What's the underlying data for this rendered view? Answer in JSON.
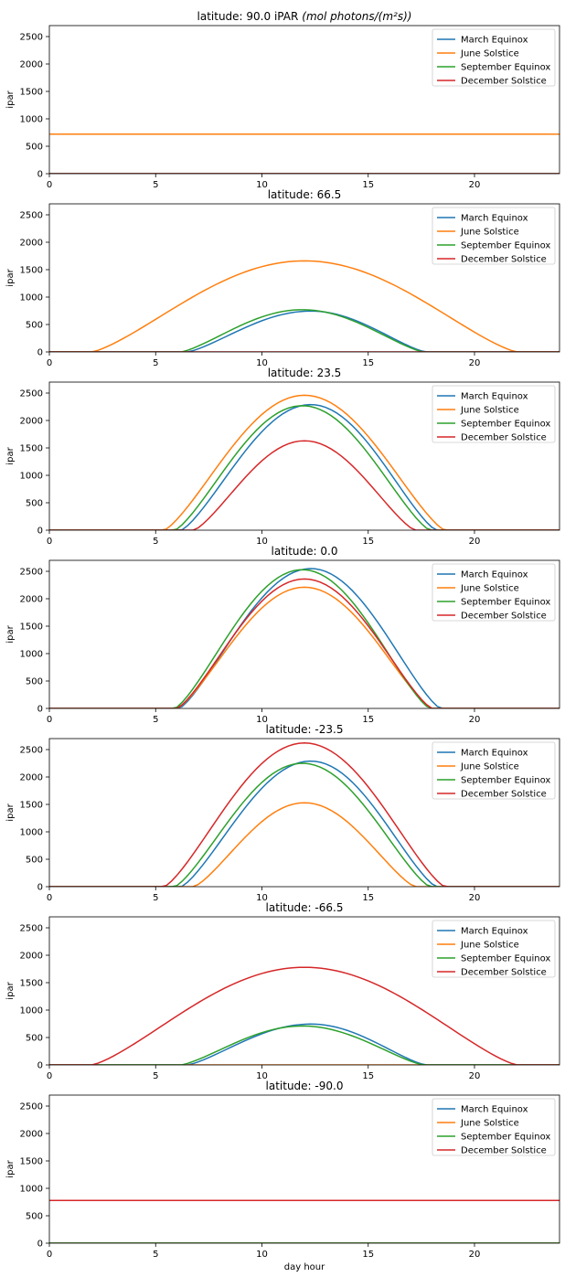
{
  "chart_data": {
    "type": "line",
    "xlabel": "day hour",
    "ylabel": "ipar",
    "xlim": [
      0,
      24
    ],
    "ylim": [
      0,
      2700
    ],
    "xticks": [
      0,
      5,
      10,
      15,
      20
    ],
    "yticks": [
      0,
      500,
      1000,
      1500,
      2000,
      2500
    ],
    "legend_placement": "top-right",
    "grid": false,
    "series_names": [
      "March Equinox",
      "June Solstice",
      "September Equinox",
      "December Solstice"
    ],
    "series_colors": [
      "#1f77b4",
      "#ff7f0e",
      "#2ca02c",
      "#d62728"
    ],
    "panels": [
      {
        "title": "latitude: 90.0 iPAR",
        "title_unit": "(mol photons/(m²s))",
        "series": [
          {
            "name": "March Equinox",
            "flat": 0
          },
          {
            "name": "June Solstice",
            "flat": 720
          },
          {
            "name": "September Equinox",
            "flat": 0
          },
          {
            "name": "December Solstice",
            "flat": 0
          }
        ]
      },
      {
        "title": "latitude: 66.5",
        "series": [
          {
            "name": "March Equinox",
            "rise": 6.5,
            "set": 17.7,
            "noon": 12.3,
            "peak": 745
          },
          {
            "name": "June Solstice",
            "rise": 2.0,
            "set": 22.0,
            "noon": 12.0,
            "peak": 1660
          },
          {
            "name": "September Equinox",
            "rise": 6.2,
            "set": 17.6,
            "noon": 11.9,
            "peak": 770
          },
          {
            "name": "December Solstice",
            "flat": 0
          }
        ]
      },
      {
        "title": "latitude: 23.5",
        "series": [
          {
            "name": "March Equinox",
            "rise": 6.2,
            "set": 18.2,
            "noon": 12.3,
            "peak": 2290
          },
          {
            "name": "June Solstice",
            "rise": 5.4,
            "set": 18.6,
            "noon": 12.0,
            "peak": 2460
          },
          {
            "name": "September Equinox",
            "rise": 5.9,
            "set": 17.9,
            "noon": 11.9,
            "peak": 2270
          },
          {
            "name": "December Solstice",
            "rise": 6.8,
            "set": 17.2,
            "noon": 12.0,
            "peak": 1630
          }
        ]
      },
      {
        "title": "latitude: 0.0",
        "series": [
          {
            "name": "March Equinox",
            "rise": 6.1,
            "set": 18.4,
            "noon": 12.3,
            "peak": 2550
          },
          {
            "name": "June Solstice",
            "rise": 6.0,
            "set": 18.0,
            "noon": 12.0,
            "peak": 2210
          },
          {
            "name": "September Equinox",
            "rise": 5.9,
            "set": 17.9,
            "noon": 11.9,
            "peak": 2530
          },
          {
            "name": "December Solstice",
            "rise": 6.0,
            "set": 18.0,
            "noon": 12.0,
            "peak": 2360
          }
        ]
      },
      {
        "title": "latitude: -23.5",
        "series": [
          {
            "name": "March Equinox",
            "rise": 6.2,
            "set": 18.2,
            "noon": 12.3,
            "peak": 2290
          },
          {
            "name": "June Solstice",
            "rise": 6.8,
            "set": 17.2,
            "noon": 12.0,
            "peak": 1530
          },
          {
            "name": "September Equinox",
            "rise": 5.9,
            "set": 17.9,
            "noon": 11.9,
            "peak": 2250
          },
          {
            "name": "December Solstice",
            "rise": 5.4,
            "set": 18.6,
            "noon": 12.0,
            "peak": 2620
          }
        ]
      },
      {
        "title": "latitude: -66.5",
        "series": [
          {
            "name": "March Equinox",
            "rise": 6.5,
            "set": 17.7,
            "noon": 12.3,
            "peak": 745
          },
          {
            "name": "June Solstice",
            "flat": 0
          },
          {
            "name": "September Equinox",
            "rise": 6.2,
            "set": 17.6,
            "noon": 11.9,
            "peak": 710
          },
          {
            "name": "December Solstice",
            "rise": 2.0,
            "set": 22.0,
            "noon": 12.0,
            "peak": 1780
          }
        ]
      },
      {
        "title": "latitude: -90.0",
        "series": [
          {
            "name": "March Equinox",
            "flat": 0
          },
          {
            "name": "June Solstice",
            "flat": 0
          },
          {
            "name": "September Equinox",
            "flat": 0
          },
          {
            "name": "December Solstice",
            "flat": 780
          }
        ]
      }
    ]
  }
}
